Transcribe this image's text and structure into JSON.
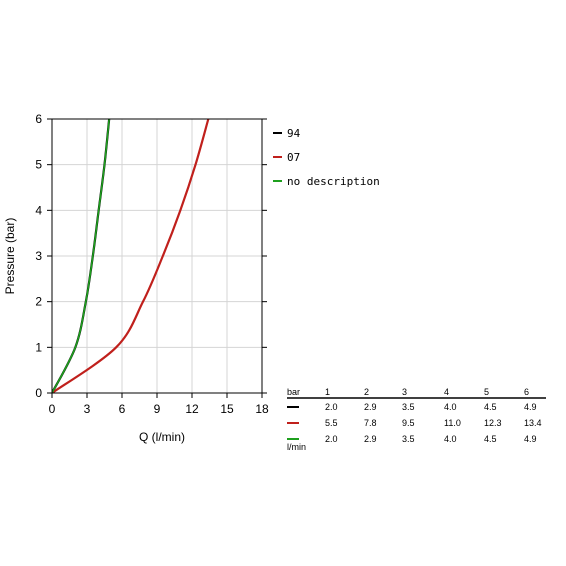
{
  "chart_data": {
    "type": "line",
    "xlabel": "Q (l/min)",
    "ylabel": "Pressure (bar)",
    "xlim": [
      0,
      18
    ],
    "ylim": [
      0,
      6
    ],
    "x_ticks": [
      "0",
      "3",
      "6",
      "9",
      "12",
      "15",
      "18"
    ],
    "y_ticks": [
      "0",
      "1",
      "2",
      "3",
      "4",
      "5",
      "6"
    ],
    "grid": true,
    "legend_position": "right",
    "series": [
      {
        "name": "94",
        "color": "#000000",
        "points": [
          [
            0,
            0
          ],
          [
            2.0,
            1
          ],
          [
            2.9,
            2
          ],
          [
            3.5,
            3
          ],
          [
            4.0,
            4
          ],
          [
            4.5,
            5
          ],
          [
            4.9,
            6
          ]
        ]
      },
      {
        "name": "07",
        "color": "#c0201c",
        "points": [
          [
            0,
            0
          ],
          [
            5.5,
            1
          ],
          [
            7.8,
            2
          ],
          [
            9.5,
            3
          ],
          [
            11.0,
            4
          ],
          [
            12.3,
            5
          ],
          [
            13.4,
            6
          ]
        ]
      },
      {
        "name": "no description",
        "color": "#1ea01e",
        "points": [
          [
            0,
            0
          ],
          [
            2.0,
            1
          ],
          [
            2.9,
            2
          ],
          [
            3.5,
            3
          ],
          [
            4.0,
            4
          ],
          [
            4.5,
            5
          ],
          [
            4.9,
            6
          ]
        ]
      }
    ],
    "table": {
      "header_label": "bar",
      "unit_label": "l/min",
      "columns": [
        "1",
        "2",
        "3",
        "4",
        "5",
        "6"
      ],
      "rows": [
        {
          "color": "#000000",
          "values": [
            "2.0",
            "2.9",
            "3.5",
            "4.0",
            "4.5",
            "4.9"
          ]
        },
        {
          "color": "#c0201c",
          "values": [
            "5.5",
            "7.8",
            "9.5",
            "11.0",
            "12.3",
            "13.4"
          ]
        },
        {
          "color": "#1ea01e",
          "values": [
            "2.0",
            "2.9",
            "3.5",
            "4.0",
            "4.5",
            "4.9"
          ]
        }
      ]
    }
  }
}
